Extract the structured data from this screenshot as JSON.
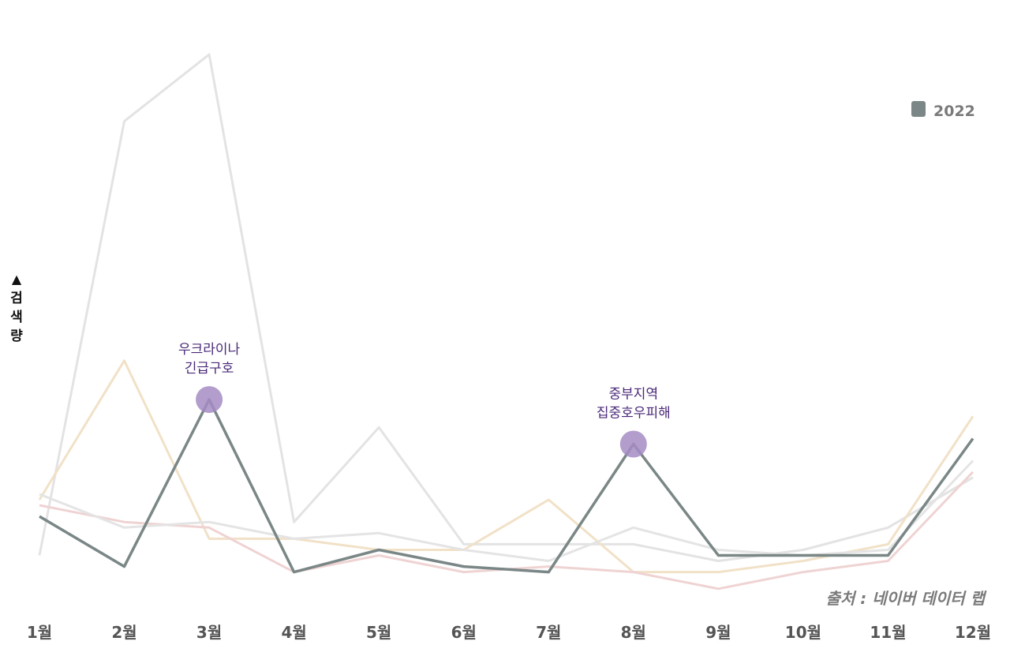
{
  "chart_data": {
    "type": "line",
    "categories": [
      "1월",
      "2월",
      "3월",
      "4월",
      "5월",
      "6월",
      "7월",
      "8월",
      "9월",
      "10월",
      "11월",
      "12월"
    ],
    "ylabel_arrow": "▲",
    "ylabel": "검색량",
    "ylim": [
      0,
      100
    ],
    "series": [
      {
        "name": "background-light-gray",
        "color": "#e3e3e3",
        "values": [
          10,
          88,
          100,
          16,
          33,
          12,
          12,
          12,
          9,
          11,
          15,
          24
        ]
      },
      {
        "name": "background-beige",
        "color": "#f1e1c7",
        "values": [
          20,
          45,
          13,
          13,
          11,
          11,
          20,
          7,
          7,
          9,
          12,
          35
        ]
      },
      {
        "name": "background-pink",
        "color": "#efd3d3",
        "values": [
          19,
          16,
          15,
          7,
          10,
          7,
          8,
          7,
          4,
          7,
          9,
          25
        ]
      },
      {
        "name": "background-gray",
        "color": "#e4e4e4",
        "values": [
          21,
          15,
          16,
          13,
          14,
          11,
          9,
          15,
          11,
          10,
          11,
          27
        ]
      },
      {
        "name": "2022",
        "color": "#7a8786",
        "values": [
          17,
          8,
          38,
          7,
          11,
          8,
          7,
          30,
          10,
          10,
          10,
          31
        ]
      }
    ],
    "legend": {
      "label": "2022",
      "color": "#7a8786",
      "position": "top-right"
    },
    "annotations": [
      {
        "category": "3월",
        "series": "2022",
        "lines": [
          "우크라이나",
          "긴급구호"
        ],
        "marker_color": "#a58cc4"
      },
      {
        "category": "8월",
        "series": "2022",
        "lines": [
          "중부지역",
          "집중호우피해"
        ],
        "marker_color": "#a58cc4"
      }
    ],
    "source": "출처 : 네이버 데이터 랩"
  }
}
